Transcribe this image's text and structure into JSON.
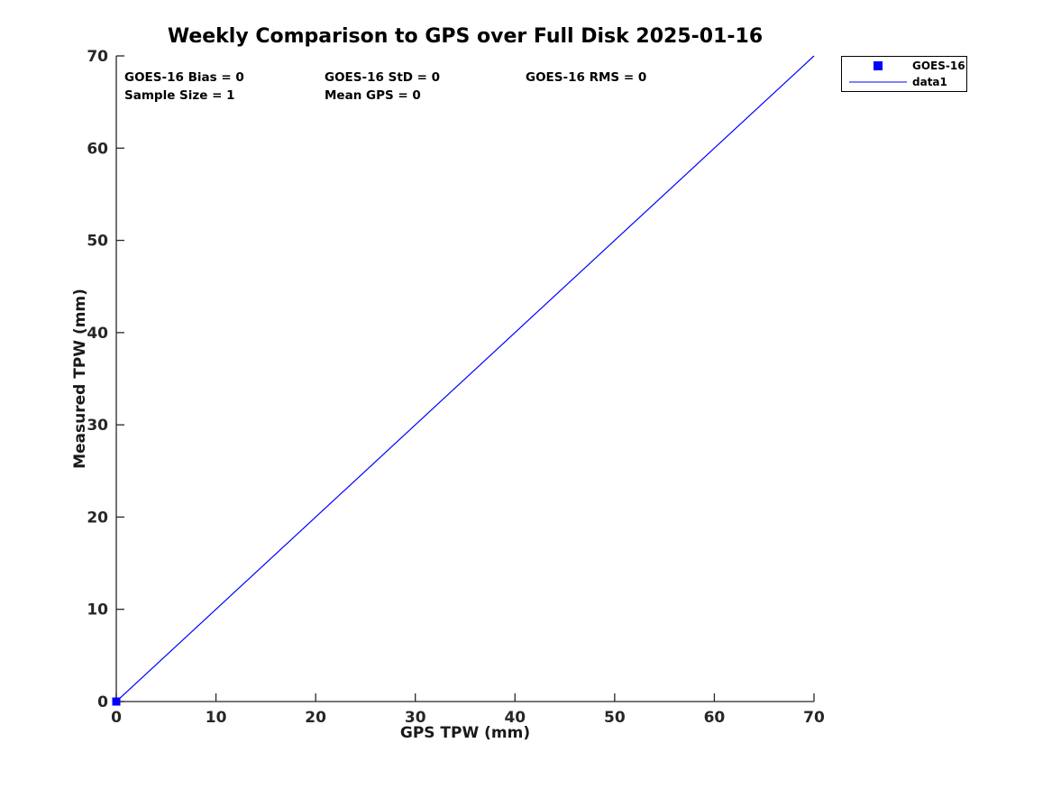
{
  "chart_data": {
    "type": "scatter",
    "title": "Weekly Comparison to GPS over Full Disk 2025-01-16",
    "xlabel": "GPS TPW (mm)",
    "ylabel": "Measured TPW (mm)",
    "xlim": [
      0,
      70
    ],
    "ylim": [
      0,
      70
    ],
    "xticks": [
      0,
      10,
      20,
      30,
      40,
      50,
      60,
      70
    ],
    "yticks": [
      0,
      10,
      20,
      30,
      40,
      50,
      60,
      70
    ],
    "grid": false,
    "series": [
      {
        "name": "GOES-16",
        "type": "scatter",
        "marker": "square",
        "color": "#0000ff",
        "points": [
          [
            0,
            0
          ]
        ]
      },
      {
        "name": "data1",
        "type": "line",
        "color": "#0000ff",
        "points": [
          [
            0,
            0
          ],
          [
            70,
            70
          ]
        ]
      }
    ],
    "annotations": [
      {
        "id": "bias",
        "text": "GOES-16 Bias = 0"
      },
      {
        "id": "std",
        "text": "GOES-16 StD = 0"
      },
      {
        "id": "rms",
        "text": "GOES-16 RMS = 0"
      },
      {
        "id": "sample_size",
        "text": "Sample Size = 1"
      },
      {
        "id": "mean_gps",
        "text": "Mean GPS = 0"
      }
    ],
    "legend": {
      "position": "top-right-outside",
      "entries": [
        {
          "label": "GOES-16",
          "marker": "square",
          "color": "#0000ff"
        },
        {
          "label": "data1",
          "marker": "line",
          "color": "#0000ff"
        }
      ]
    },
    "colors": {
      "axis": "#262626",
      "title_text": "#000000",
      "annotation_text": "#000000",
      "background": "#ffffff"
    }
  }
}
